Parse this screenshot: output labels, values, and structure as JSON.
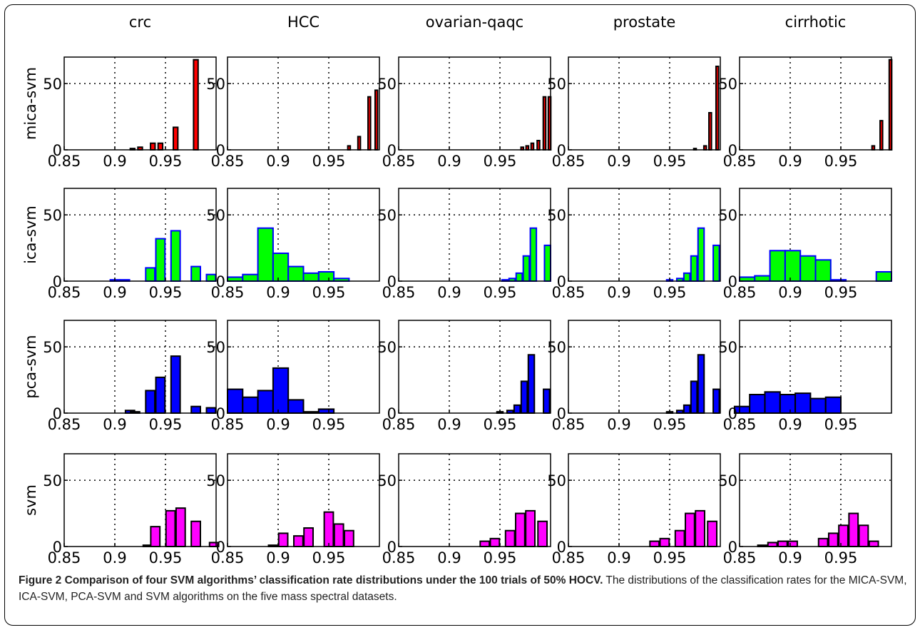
{
  "figure": {
    "caption_lead": "Figure 2 Comparison of four SVM algorithms’ classification rate distributions under the 100 trials of 50% HOCV.",
    "caption_text": " The distributions of the classification rates for the MICA-SVM, ICA-SVM, PCA-SVM and SVM algorithms on the five mass spectral datasets."
  },
  "chart_data": {
    "type": "bar",
    "layout": "small-multiples",
    "columns": [
      "crc",
      "HCC",
      "ovarian-qaqc",
      "prostate",
      "cirrhotic"
    ],
    "rows": [
      {
        "label": "mica-svm",
        "color": "#ff0000"
      },
      {
        "label": "ica-svm",
        "color": "#00ff00"
      },
      {
        "label": "pca-svm",
        "color": "#0000ff"
      },
      {
        "label": "svm",
        "color": "#ff00ff"
      }
    ],
    "edge_colors": {
      "mica-svm": "#000000",
      "ica-svm": "#0000ff",
      "pca-svm": "#000000",
      "svm": "#000000"
    },
    "xlim": [
      0.85,
      1.0
    ],
    "ylim": [
      0,
      70
    ],
    "xticks": [
      0.85,
      0.9,
      0.95
    ],
    "xtick_labels": [
      "0.85",
      "0.9",
      "0.95"
    ],
    "yticks": [
      0,
      50
    ],
    "ytick_labels": [
      "0",
      "50"
    ],
    "grid": true,
    "panels": [
      [
        {
          "bins": [
            0.9175,
            0.925,
            0.9375,
            0.945,
            0.96,
            0.98,
            0.995
          ],
          "width": 0.0045,
          "values": [
            1,
            2,
            5,
            5,
            17,
            68,
            0
          ]
        },
        {
          "bins": [
            0.97,
            0.98,
            0.99,
            0.997
          ],
          "width": 0.0025,
          "values": [
            3,
            10,
            40,
            45
          ]
        },
        {
          "bins": [
            0.972,
            0.977,
            0.982,
            0.988,
            0.994,
            0.999
          ],
          "width": 0.0025,
          "values": [
            2,
            3,
            5,
            7,
            40,
            40
          ]
        },
        {
          "bins": [
            0.975,
            0.985,
            0.99,
            0.997
          ],
          "width": 0.0025,
          "values": [
            1,
            3,
            28,
            63
          ]
        },
        {
          "bins": [
            0.982,
            0.99,
            0.999
          ],
          "width": 0.0025,
          "values": [
            3,
            22,
            68
          ]
        }
      ],
      [
        {
          "bins": [
            0.9,
            0.91,
            0.935,
            0.945,
            0.96,
            0.98,
            0.995
          ],
          "width": 0.009,
          "values": [
            1,
            1,
            10,
            32,
            38,
            11,
            5
          ]
        },
        {
          "bins": [
            0.8575,
            0.8725,
            0.8875,
            0.9025,
            0.9175,
            0.9325,
            0.9475,
            0.9625
          ],
          "width": 0.015,
          "values": [
            3,
            5,
            40,
            21,
            11,
            6,
            7,
            2
          ]
        },
        {
          "bins": [
            0.955,
            0.962,
            0.969,
            0.976,
            0.983,
            0.99,
            0.997
          ],
          "width": 0.006,
          "values": [
            1,
            2,
            6,
            19,
            40,
            0,
            27
          ]
        },
        {
          "bins": [
            0.95,
            0.96,
            0.967,
            0.974,
            0.981,
            0.988,
            0.996
          ],
          "width": 0.006,
          "values": [
            1,
            2,
            6,
            19,
            40,
            0,
            27
          ]
        },
        {
          "bins": [
            0.8575,
            0.8725,
            0.8875,
            0.9025,
            0.9175,
            0.9325,
            0.9475,
            0.9625,
            0.9775,
            0.9925
          ],
          "width": 0.015,
          "values": [
            3,
            4,
            23,
            23,
            19,
            16,
            1,
            0,
            0,
            7
          ]
        }
      ],
      [
        {
          "bins": [
            0.915,
            0.92,
            0.935,
            0.945,
            0.96,
            0.98,
            0.995
          ],
          "width": 0.009,
          "values": [
            2,
            1,
            17,
            27,
            43,
            5,
            4
          ]
        },
        {
          "bins": [
            0.8575,
            0.8725,
            0.8875,
            0.9025,
            0.9175,
            0.9325,
            0.9475,
            0.9625
          ],
          "width": 0.015,
          "values": [
            18,
            12,
            17,
            34,
            10,
            1,
            3,
            0
          ]
        },
        {
          "bins": [
            0.95,
            0.96,
            0.967,
            0.974,
            0.981,
            0.988,
            0.996
          ],
          "width": 0.006,
          "values": [
            1,
            2,
            6,
            24,
            44,
            0,
            18
          ]
        },
        {
          "bins": [
            0.95,
            0.96,
            0.967,
            0.974,
            0.981,
            0.988,
            0.996
          ],
          "width": 0.006,
          "values": [
            1,
            2,
            6,
            24,
            44,
            0,
            18
          ]
        },
        {
          "bins": [
            0.8525,
            0.8675,
            0.8825,
            0.8975,
            0.9125,
            0.9275,
            0.9425,
            0.9575
          ],
          "width": 0.015,
          "values": [
            5,
            14,
            16,
            14,
            15,
            11,
            12,
            0
          ]
        }
      ],
      [
        {
          "bins": [
            0.9325,
            0.94,
            0.955,
            0.965,
            0.98,
            0.998
          ],
          "width": 0.009,
          "values": [
            1,
            15,
            27,
            29,
            19,
            3
          ]
        },
        {
          "bins": [
            0.895,
            0.905,
            0.92,
            0.93,
            0.95,
            0.96,
            0.97
          ],
          "width": 0.009,
          "values": [
            1,
            10,
            8,
            14,
            26,
            17,
            12
          ]
        },
        {
          "bins": [
            0.935,
            0.945,
            0.96,
            0.97,
            0.98,
            0.992
          ],
          "width": 0.009,
          "values": [
            4,
            6,
            12,
            25,
            27,
            19
          ]
        },
        {
          "bins": [
            0.935,
            0.945,
            0.96,
            0.97,
            0.98,
            0.992
          ],
          "width": 0.009,
          "values": [
            4,
            6,
            12,
            25,
            27,
            19
          ]
        },
        {
          "bins": [
            0.8725,
            0.8825,
            0.8925,
            0.9025,
            0.9325,
            0.9425,
            0.9525,
            0.9625,
            0.9725,
            0.9825,
            0.9925
          ],
          "width": 0.009,
          "values": [
            1,
            3,
            4,
            4,
            6,
            10,
            16,
            25,
            16,
            4,
            0
          ]
        }
      ]
    ]
  }
}
